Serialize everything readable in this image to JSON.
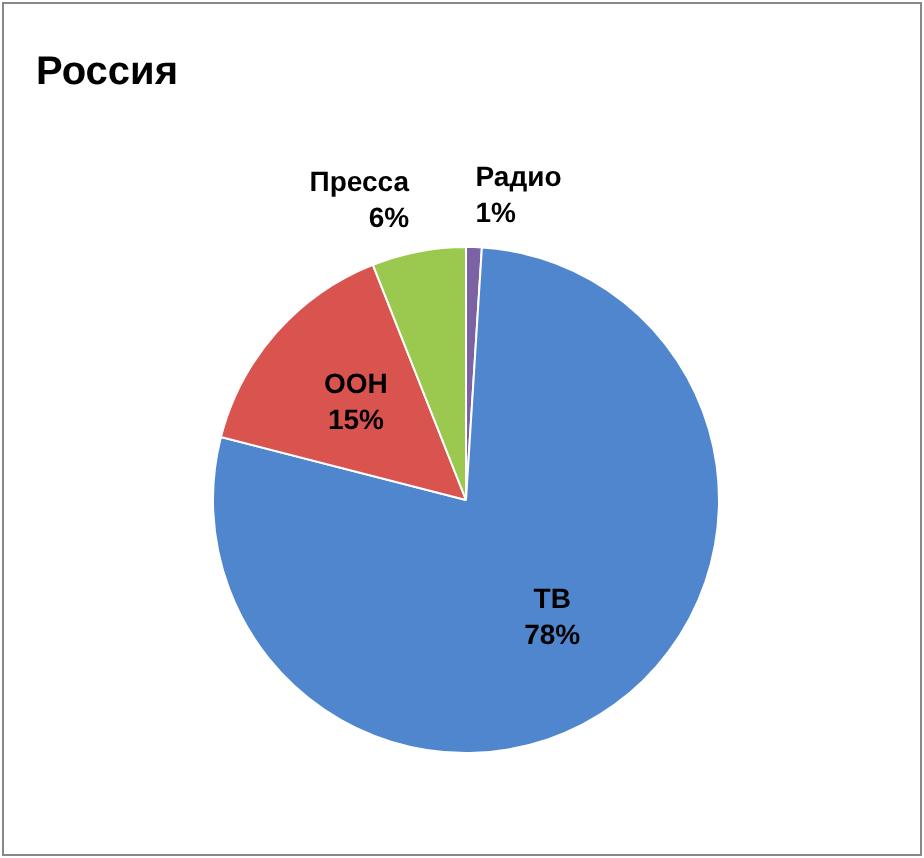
{
  "chart_data": {
    "type": "pie",
    "title": "Россия",
    "categories": [
      "Радио",
      "ТВ",
      "ООН",
      "Пресса"
    ],
    "values": [
      1,
      78,
      15,
      6
    ],
    "colors": [
      "#7b62a3",
      "#4f86cd",
      "#d9534f",
      "#9bc94f"
    ],
    "value_labels": [
      "1%",
      "78%",
      "15%",
      "6%"
    ],
    "legend": false
  }
}
